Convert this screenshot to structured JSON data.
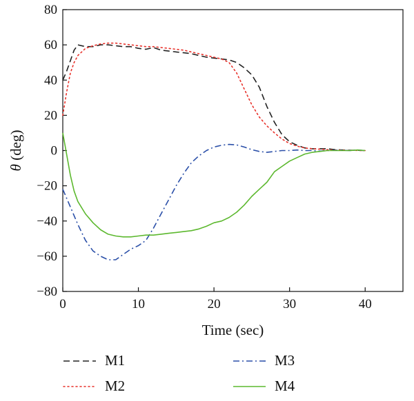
{
  "chart_data": {
    "type": "line",
    "title": "",
    "xlabel": "Time (sec)",
    "ylabel": "θ (deg)",
    "xlim": [
      0,
      45
    ],
    "ylim": [
      -80,
      80
    ],
    "xticks": [
      0,
      10,
      20,
      30,
      40
    ],
    "yticks": [
      -80,
      -60,
      -40,
      -20,
      0,
      20,
      40,
      60,
      80
    ],
    "grid": false,
    "legend_position": "bottom",
    "series": [
      {
        "name": "M1",
        "color": "#222222",
        "style": "dashed",
        "points": [
          [
            0,
            40
          ],
          [
            0.5,
            45
          ],
          [
            1,
            51
          ],
          [
            1.5,
            57
          ],
          [
            2,
            60
          ],
          [
            3,
            59
          ],
          [
            4,
            59
          ],
          [
            5,
            60
          ],
          [
            6,
            60
          ],
          [
            7,
            59.5
          ],
          [
            8,
            59
          ],
          [
            9,
            59
          ],
          [
            10,
            58
          ],
          [
            11,
            57.5
          ],
          [
            12,
            58.5
          ],
          [
            13,
            57
          ],
          [
            14,
            56.5
          ],
          [
            15,
            56
          ],
          [
            16,
            55.5
          ],
          [
            17,
            55
          ],
          [
            18,
            54
          ],
          [
            19,
            53
          ],
          [
            20,
            52.5
          ],
          [
            21,
            52
          ],
          [
            22,
            51.5
          ],
          [
            23,
            50
          ],
          [
            24,
            47
          ],
          [
            25,
            43
          ],
          [
            26,
            36
          ],
          [
            27,
            25
          ],
          [
            28,
            16
          ],
          [
            29,
            9
          ],
          [
            30,
            5
          ],
          [
            31,
            3
          ],
          [
            32,
            1.5
          ],
          [
            33,
            1
          ],
          [
            34,
            1
          ],
          [
            35,
            1
          ],
          [
            36,
            0.5
          ],
          [
            37,
            0.3
          ],
          [
            38,
            0.2
          ],
          [
            39,
            0.1
          ],
          [
            40,
            0
          ]
        ]
      },
      {
        "name": "M2",
        "color": "#e8312a",
        "style": "dotted",
        "points": [
          [
            0,
            20
          ],
          [
            0.5,
            33
          ],
          [
            1,
            44
          ],
          [
            1.5,
            50
          ],
          [
            2,
            54
          ],
          [
            3,
            58
          ],
          [
            4,
            59.5
          ],
          [
            5,
            60.5
          ],
          [
            6,
            61
          ],
          [
            7,
            61
          ],
          [
            8,
            60.5
          ],
          [
            9,
            60
          ],
          [
            10,
            59.5
          ],
          [
            11,
            59
          ],
          [
            12,
            59
          ],
          [
            13,
            58.5
          ],
          [
            14,
            58
          ],
          [
            15,
            57.5
          ],
          [
            16,
            57
          ],
          [
            17,
            56
          ],
          [
            18,
            55
          ],
          [
            19,
            54
          ],
          [
            20,
            53
          ],
          [
            21,
            52
          ],
          [
            22,
            50
          ],
          [
            23,
            44
          ],
          [
            24,
            35
          ],
          [
            25,
            26
          ],
          [
            26,
            19
          ],
          [
            27,
            14
          ],
          [
            28,
            10
          ],
          [
            29,
            6.5
          ],
          [
            30,
            4
          ],
          [
            31,
            2.5
          ],
          [
            32,
            1.5
          ],
          [
            33,
            1
          ],
          [
            34,
            0.8
          ],
          [
            35,
            0.5
          ],
          [
            36,
            0.3
          ],
          [
            37,
            0.2
          ],
          [
            38,
            0.1
          ],
          [
            40,
            0
          ]
        ]
      },
      {
        "name": "M3",
        "color": "#2a4fa8",
        "style": "dashdot",
        "points": [
          [
            0,
            -22
          ],
          [
            1,
            -32
          ],
          [
            2,
            -42
          ],
          [
            3,
            -51
          ],
          [
            4,
            -57
          ],
          [
            5,
            -60
          ],
          [
            6,
            -62
          ],
          [
            7,
            -62
          ],
          [
            8,
            -59
          ],
          [
            9,
            -56
          ],
          [
            10,
            -54
          ],
          [
            11,
            -51
          ],
          [
            12,
            -44
          ],
          [
            13,
            -36
          ],
          [
            14,
            -28
          ],
          [
            15,
            -20
          ],
          [
            16,
            -13
          ],
          [
            17,
            -7
          ],
          [
            18,
            -3
          ],
          [
            19,
            0
          ],
          [
            20,
            2
          ],
          [
            21,
            3
          ],
          [
            22,
            3.5
          ],
          [
            23,
            3.2
          ],
          [
            24,
            2
          ],
          [
            25,
            0.5
          ],
          [
            26,
            -0.5
          ],
          [
            27,
            -1
          ],
          [
            28,
            -0.5
          ],
          [
            29,
            0
          ],
          [
            30,
            0
          ],
          [
            31,
            0.3
          ],
          [
            32,
            0
          ],
          [
            33,
            0
          ],
          [
            34,
            -0.3
          ],
          [
            35,
            0
          ],
          [
            36,
            0.2
          ],
          [
            37,
            0.2
          ],
          [
            38,
            0
          ],
          [
            39,
            0.3
          ],
          [
            40,
            0
          ]
        ]
      },
      {
        "name": "M4",
        "color": "#5cb82e",
        "style": "solid",
        "points": [
          [
            0,
            10
          ],
          [
            0.5,
            -2
          ],
          [
            1,
            -14
          ],
          [
            1.5,
            -23
          ],
          [
            2,
            -29
          ],
          [
            3,
            -36
          ],
          [
            4,
            -41
          ],
          [
            5,
            -45
          ],
          [
            6,
            -47.5
          ],
          [
            7,
            -48.5
          ],
          [
            8,
            -49
          ],
          [
            9,
            -49
          ],
          [
            10,
            -48.5
          ],
          [
            11,
            -48
          ],
          [
            12,
            -48
          ],
          [
            13,
            -47.5
          ],
          [
            14,
            -47
          ],
          [
            15,
            -46.5
          ],
          [
            16,
            -46
          ],
          [
            17,
            -45.5
          ],
          [
            18,
            -44.5
          ],
          [
            19,
            -43
          ],
          [
            20,
            -41
          ],
          [
            21,
            -40
          ],
          [
            22,
            -38
          ],
          [
            23,
            -35
          ],
          [
            24,
            -31
          ],
          [
            25,
            -26
          ],
          [
            26,
            -22
          ],
          [
            27,
            -18
          ],
          [
            28,
            -12
          ],
          [
            29,
            -9
          ],
          [
            30,
            -6
          ],
          [
            31,
            -4
          ],
          [
            32,
            -2
          ],
          [
            33,
            -1
          ],
          [
            34,
            -0.5
          ],
          [
            35,
            0
          ],
          [
            36,
            0
          ],
          [
            37,
            0
          ],
          [
            38,
            0
          ],
          [
            39,
            0.3
          ],
          [
            40,
            0
          ]
        ]
      }
    ]
  }
}
